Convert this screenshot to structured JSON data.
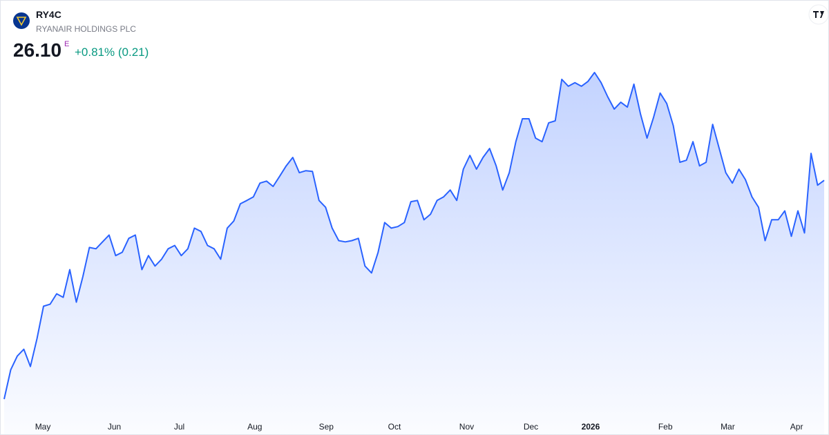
{
  "chart_data": {
    "type": "area",
    "title": "RY4C",
    "subtitle": "RYANAIR HOLDINGS PLC",
    "last_price": "26.10",
    "price_flag": "E",
    "change": "+0.81% (0.21)",
    "color": "#2962ff",
    "values": [
      17.5,
      18.65,
      19.19,
      19.46,
      18.78,
      19.87,
      21.15,
      21.23,
      21.64,
      21.5,
      22.59,
      21.31,
      22.32,
      23.46,
      23.41,
      23.68,
      23.95,
      23.14,
      23.27,
      23.82,
      23.95,
      22.59,
      23.14,
      22.73,
      23.0,
      23.41,
      23.54,
      23.14,
      23.41,
      24.22,
      24.09,
      23.54,
      23.41,
      23.0,
      24.22,
      24.5,
      25.18,
      25.31,
      25.45,
      25.99,
      26.07,
      25.86,
      26.26,
      26.67,
      27.0,
      26.4,
      26.48,
      26.45,
      25.31,
      25.04,
      24.22,
      23.73,
      23.68,
      23.73,
      23.82,
      22.73,
      22.46,
      23.27,
      24.44,
      24.22,
      24.28,
      24.44,
      25.26,
      25.31,
      24.55,
      24.77,
      25.31,
      25.45,
      25.72,
      25.31,
      26.54,
      27.08,
      26.54,
      27.0,
      27.35,
      26.67,
      25.72,
      26.4,
      27.62,
      28.52,
      28.52,
      27.76,
      27.62,
      28.36,
      28.44,
      30.07,
      29.8,
      29.94,
      29.8,
      29.99,
      30.34,
      29.94,
      29.39,
      28.9,
      29.17,
      28.98,
      29.88,
      28.71,
      27.76,
      28.58,
      29.53,
      29.12,
      28.25,
      26.81,
      26.89,
      27.62,
      26.67,
      26.81,
      28.3,
      27.35,
      26.4,
      25.99,
      26.54,
      26.13,
      25.45,
      25.04,
      23.73,
      24.55,
      24.55,
      24.9,
      23.9,
      24.9,
      24.03,
      27.16,
      25.91,
      26.1
    ],
    "xticks": [
      {
        "value": 5.9,
        "label": "May"
      },
      {
        "value": 16.8,
        "label": "Jun"
      },
      {
        "value": 26.7,
        "label": "Jul"
      },
      {
        "value": 38.2,
        "label": "Aug"
      },
      {
        "value": 49.1,
        "label": "Sep"
      },
      {
        "value": 59.5,
        "label": "Oct"
      },
      {
        "value": 70.5,
        "label": "Nov"
      },
      {
        "value": 80.3,
        "label": "Dec"
      },
      {
        "value": 89.4,
        "label": "2026"
      },
      {
        "value": 100.8,
        "label": "Feb"
      },
      {
        "value": 110.3,
        "label": "Mar"
      },
      {
        "value": 120.8,
        "label": "Apr"
      }
    ]
  }
}
